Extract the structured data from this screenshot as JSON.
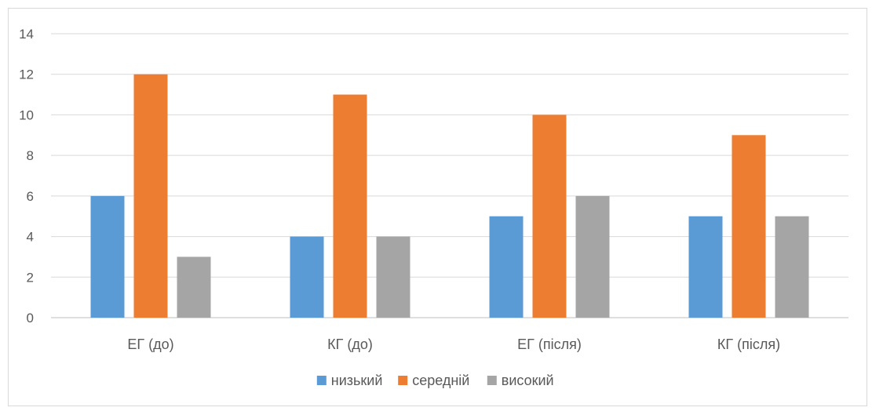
{
  "chart_data": {
    "type": "bar",
    "categories": [
      "ЕГ (до)",
      "КГ (до)",
      "ЕГ (після)",
      "КГ (після)"
    ],
    "series": [
      {
        "name": "низький",
        "values": [
          6,
          4,
          5,
          5
        ],
        "color": "#5b9bd5"
      },
      {
        "name": "середній",
        "values": [
          12,
          11,
          10,
          9
        ],
        "color": "#ed7d31"
      },
      {
        "name": "високий",
        "values": [
          3,
          4,
          6,
          5
        ],
        "color": "#a5a5a5"
      }
    ],
    "ylim": [
      0,
      14
    ],
    "yticks": [
      0,
      2,
      4,
      6,
      8,
      10,
      12,
      14
    ],
    "grid": true,
    "legend_position": "bottom"
  }
}
